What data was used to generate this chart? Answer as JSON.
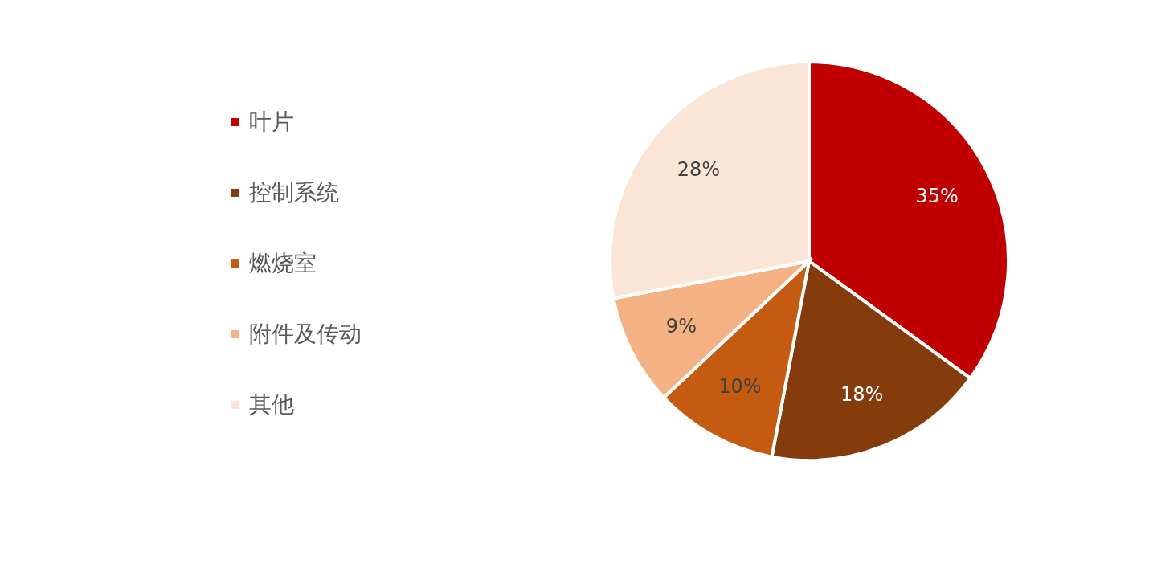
{
  "chart_data": {
    "type": "pie",
    "categories": [
      "叶片",
      "控制系统",
      "燃烧室",
      "附件及传动",
      "其他"
    ],
    "values": [
      35,
      18,
      10,
      9,
      28
    ],
    "colors": [
      "#c00000",
      "#843c0c",
      "#c55a11",
      "#f4b183",
      "#fbe5d6"
    ],
    "value_labels": [
      "35%",
      "18%",
      "10%",
      "9%",
      "28%"
    ],
    "legend": "left"
  }
}
